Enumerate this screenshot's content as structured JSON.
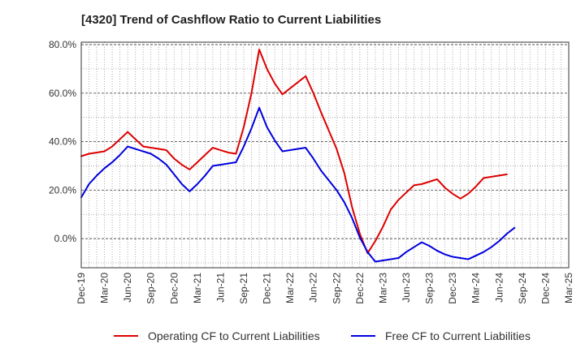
{
  "chart_data": {
    "type": "line",
    "title": "[4320]  Trend of Cashflow Ratio to Current Liabilities",
    "xlabel": "",
    "ylabel": "",
    "x_ticks": [
      "Dec-19",
      "Mar-20",
      "Jun-20",
      "Sep-20",
      "Dec-20",
      "Mar-21",
      "Jun-21",
      "Sep-21",
      "Dec-21",
      "Mar-22",
      "Jun-22",
      "Sep-22",
      "Dec-22",
      "Mar-23",
      "Jun-23",
      "Sep-23",
      "Dec-23",
      "Mar-24",
      "Jun-24",
      "Sep-24",
      "Dec-24",
      "Mar-25"
    ],
    "x_range": [
      "Dec-19",
      "Mar-25"
    ],
    "y_ticks": [
      "0.0%",
      "20.0%",
      "40.0%",
      "60.0%",
      "80.0%"
    ],
    "y_tick_values": [
      0,
      20,
      40,
      60,
      80
    ],
    "ylim": [
      -12,
      81
    ],
    "grid": true,
    "legend_position": "bottom",
    "series": [
      {
        "name": "Operating CF to Current Liabilities",
        "color": "#dd0000",
        "points": [
          [
            "Dec-19",
            34.0
          ],
          [
            "Jan-20",
            35.0
          ],
          [
            "Feb-20",
            35.5
          ],
          [
            "Mar-20",
            36.0
          ],
          [
            "Apr-20",
            38.0
          ],
          [
            "May-20",
            41.0
          ],
          [
            "Jun-20",
            44.0
          ],
          [
            "Jul-20",
            41.0
          ],
          [
            "Aug-20",
            38.0
          ],
          [
            "Sep-20",
            37.5
          ],
          [
            "Oct-20",
            37.0
          ],
          [
            "Nov-20",
            36.5
          ],
          [
            "Dec-20",
            33.0
          ],
          [
            "Jan-21",
            30.5
          ],
          [
            "Feb-21",
            28.5
          ],
          [
            "Mar-21",
            31.5
          ],
          [
            "Apr-21",
            34.5
          ],
          [
            "May-21",
            37.5
          ],
          [
            "Jun-21",
            36.5
          ],
          [
            "Jul-21",
            35.5
          ],
          [
            "Aug-21",
            35.0
          ],
          [
            "Sep-21",
            46.0
          ],
          [
            "Oct-21",
            60.0
          ],
          [
            "Nov-21",
            78.0
          ],
          [
            "Dec-21",
            70.0
          ],
          [
            "Jan-22",
            64.0
          ],
          [
            "Feb-22",
            59.5
          ],
          [
            "Mar-22",
            62.0
          ],
          [
            "Apr-22",
            64.5
          ],
          [
            "May-22",
            67.0
          ],
          [
            "Jun-22",
            60.0
          ],
          [
            "Jul-22",
            52.0
          ],
          [
            "Aug-22",
            44.5
          ],
          [
            "Sep-22",
            37.0
          ],
          [
            "Oct-22",
            27.0
          ],
          [
            "Nov-22",
            13.0
          ],
          [
            "Dec-22",
            2.0
          ],
          [
            "Jan-23",
            -6.0
          ],
          [
            "Feb-23",
            -1.0
          ],
          [
            "Mar-23",
            5.0
          ],
          [
            "Apr-23",
            12.0
          ],
          [
            "May-23",
            16.0
          ],
          [
            "Jun-23",
            19.0
          ],
          [
            "Jul-23",
            22.0
          ],
          [
            "Aug-23",
            22.5
          ],
          [
            "Sep-23",
            23.5
          ],
          [
            "Oct-23",
            24.5
          ],
          [
            "Nov-23",
            21.0
          ],
          [
            "Dec-23",
            18.5
          ],
          [
            "Jan-24",
            16.5
          ],
          [
            "Feb-24",
            18.5
          ],
          [
            "Mar-24",
            21.5
          ],
          [
            "Apr-24",
            25.0
          ],
          [
            "May-24",
            25.5
          ],
          [
            "Jun-24",
            26.0
          ],
          [
            "Jul-24",
            26.5
          ]
        ]
      },
      {
        "name": "Free CF to Current Liabilities",
        "color": "#0000dd",
        "points": [
          [
            "Dec-19",
            17.0
          ],
          [
            "Jan-20",
            22.5
          ],
          [
            "Feb-20",
            26.0
          ],
          [
            "Mar-20",
            29.0
          ],
          [
            "Apr-20",
            31.5
          ],
          [
            "May-20",
            34.5
          ],
          [
            "Jun-20",
            38.0
          ],
          [
            "Jul-20",
            37.0
          ],
          [
            "Aug-20",
            36.0
          ],
          [
            "Sep-20",
            35.0
          ],
          [
            "Oct-20",
            33.0
          ],
          [
            "Nov-20",
            30.5
          ],
          [
            "Dec-20",
            26.5
          ],
          [
            "Jan-21",
            22.5
          ],
          [
            "Feb-21",
            19.5
          ],
          [
            "Mar-21",
            22.5
          ],
          [
            "Apr-21",
            26.0
          ],
          [
            "May-21",
            30.0
          ],
          [
            "Jun-21",
            30.5
          ],
          [
            "Jul-21",
            31.0
          ],
          [
            "Aug-21",
            31.5
          ],
          [
            "Sep-21",
            38.0
          ],
          [
            "Oct-21",
            45.5
          ],
          [
            "Nov-21",
            54.0
          ],
          [
            "Dec-21",
            46.0
          ],
          [
            "Jan-22",
            40.5
          ],
          [
            "Feb-22",
            36.0
          ],
          [
            "Mar-22",
            36.5
          ],
          [
            "Apr-22",
            37.0
          ],
          [
            "May-22",
            37.5
          ],
          [
            "Jun-22",
            33.0
          ],
          [
            "Jul-22",
            28.0
          ],
          [
            "Aug-22",
            24.0
          ],
          [
            "Sep-22",
            20.0
          ],
          [
            "Oct-22",
            15.0
          ],
          [
            "Nov-22",
            8.5
          ],
          [
            "Dec-22",
            0.5
          ],
          [
            "Jan-23",
            -5.5
          ],
          [
            "Feb-23",
            -9.5
          ],
          [
            "Mar-23",
            -9.0
          ],
          [
            "Apr-23",
            -8.5
          ],
          [
            "May-23",
            -8.0
          ],
          [
            "Jun-23",
            -5.5
          ],
          [
            "Jul-23",
            -3.5
          ],
          [
            "Aug-23",
            -1.5
          ],
          [
            "Sep-23",
            -3.0
          ],
          [
            "Oct-23",
            -5.0
          ],
          [
            "Nov-23",
            -6.5
          ],
          [
            "Dec-23",
            -7.5
          ],
          [
            "Jan-24",
            -8.0
          ],
          [
            "Feb-24",
            -8.5
          ],
          [
            "Mar-24",
            -7.0
          ],
          [
            "Apr-24",
            -5.5
          ],
          [
            "May-24",
            -3.5
          ],
          [
            "Jun-24",
            -1.0
          ],
          [
            "Jul-24",
            2.0
          ],
          [
            "Aug-24",
            4.5
          ]
        ]
      }
    ]
  }
}
